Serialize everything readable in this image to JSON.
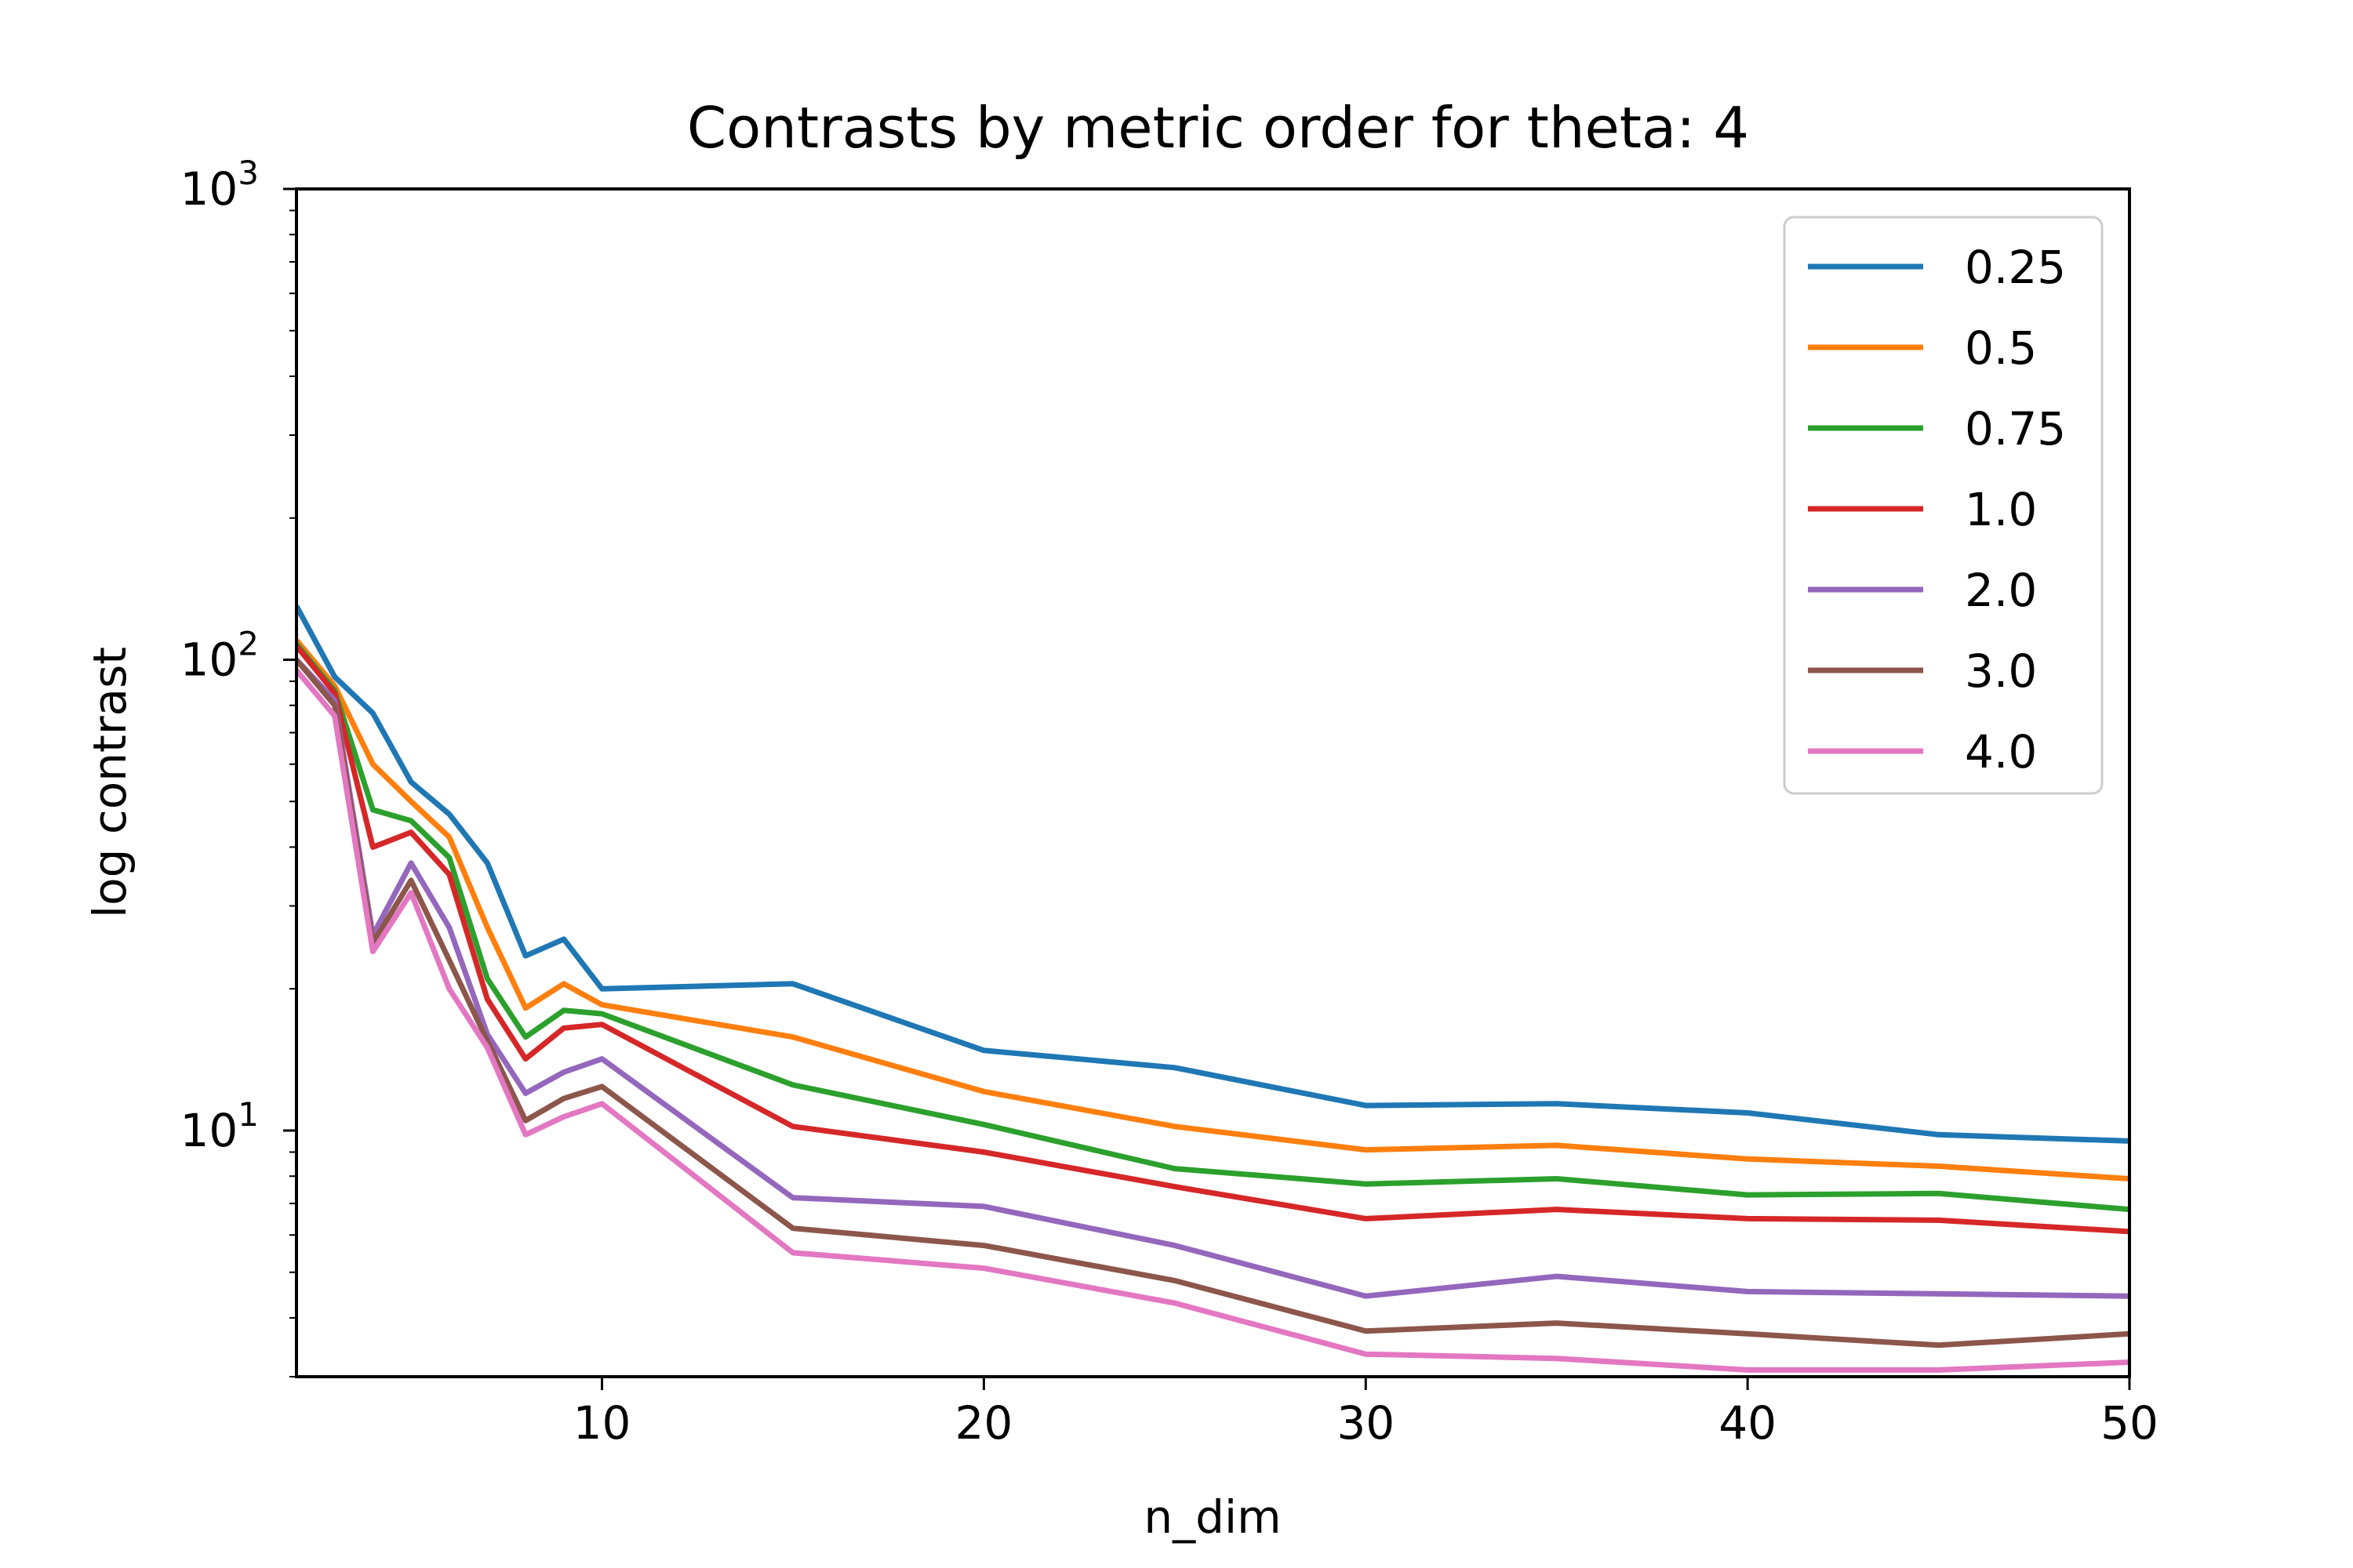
{
  "chart_data": {
    "type": "line",
    "title": "Contrasts by metric order for theta: 4",
    "xlabel": "n_dim",
    "ylabel": "log contrast",
    "xlim": [
      2,
      50
    ],
    "ylim": [
      3.0,
      1000
    ],
    "yscale": "log",
    "x_ticks": [
      10,
      20,
      30,
      40,
      50
    ],
    "x_tick_labels": [
      "10",
      "20",
      "30",
      "40",
      "50"
    ],
    "y_ticks": [
      10,
      100,
      1000
    ],
    "y_tick_labels": [
      {
        "base": "10",
        "exp": "1"
      },
      {
        "base": "10",
        "exp": "2"
      },
      {
        "base": "10",
        "exp": "3"
      }
    ],
    "grid": false,
    "legend_position": "top-right",
    "x": [
      2,
      3,
      4,
      5,
      6,
      7,
      8,
      9,
      10,
      15,
      20,
      25,
      30,
      35,
      40,
      45,
      50
    ],
    "series": [
      {
        "name": "0.25",
        "color": "#1f77b4",
        "values": [
          130,
          92,
          77,
          55,
          47,
          37,
          23.5,
          25.5,
          20,
          20.5,
          14.8,
          13.6,
          11.3,
          11.4,
          10.9,
          9.8,
          9.5
        ]
      },
      {
        "name": "0.5",
        "color": "#ff7f0e",
        "values": [
          110,
          88,
          60,
          50,
          42,
          27,
          18.2,
          20.5,
          18.5,
          15.8,
          12.1,
          10.2,
          9.1,
          9.3,
          8.7,
          8.4,
          7.9
        ]
      },
      {
        "name": "0.75",
        "color": "#2ca02c",
        "values": [
          108,
          86,
          48,
          45.5,
          38,
          21,
          15.8,
          18,
          17.7,
          12.5,
          10.3,
          8.3,
          7.7,
          7.9,
          7.3,
          7.35,
          6.8
        ]
      },
      {
        "name": "1.0",
        "color": "#d62728",
        "values": [
          107,
          85,
          40,
          43,
          35,
          19,
          14.2,
          16.5,
          16.8,
          10.2,
          9.0,
          7.6,
          6.5,
          6.8,
          6.5,
          6.45,
          6.1
        ]
      },
      {
        "name": "2.0",
        "color": "#9467bd",
        "values": [
          100,
          82,
          26,
          37,
          27,
          16,
          12,
          13.3,
          14.2,
          7.2,
          6.9,
          5.7,
          4.45,
          4.9,
          4.55,
          4.5,
          4.45
        ]
      },
      {
        "name": "3.0",
        "color": "#8c564b",
        "values": [
          100,
          80,
          25,
          34,
          23,
          15.5,
          10.5,
          11.7,
          12.4,
          6.2,
          5.7,
          4.8,
          3.75,
          3.9,
          3.7,
          3.5,
          3.7
        ]
      },
      {
        "name": "4.0",
        "color": "#e377c2",
        "values": [
          95,
          76,
          24,
          32,
          20,
          15,
          9.8,
          10.7,
          11.4,
          5.5,
          5.1,
          4.3,
          3.35,
          3.28,
          3.1,
          3.1,
          3.22
        ]
      }
    ]
  }
}
